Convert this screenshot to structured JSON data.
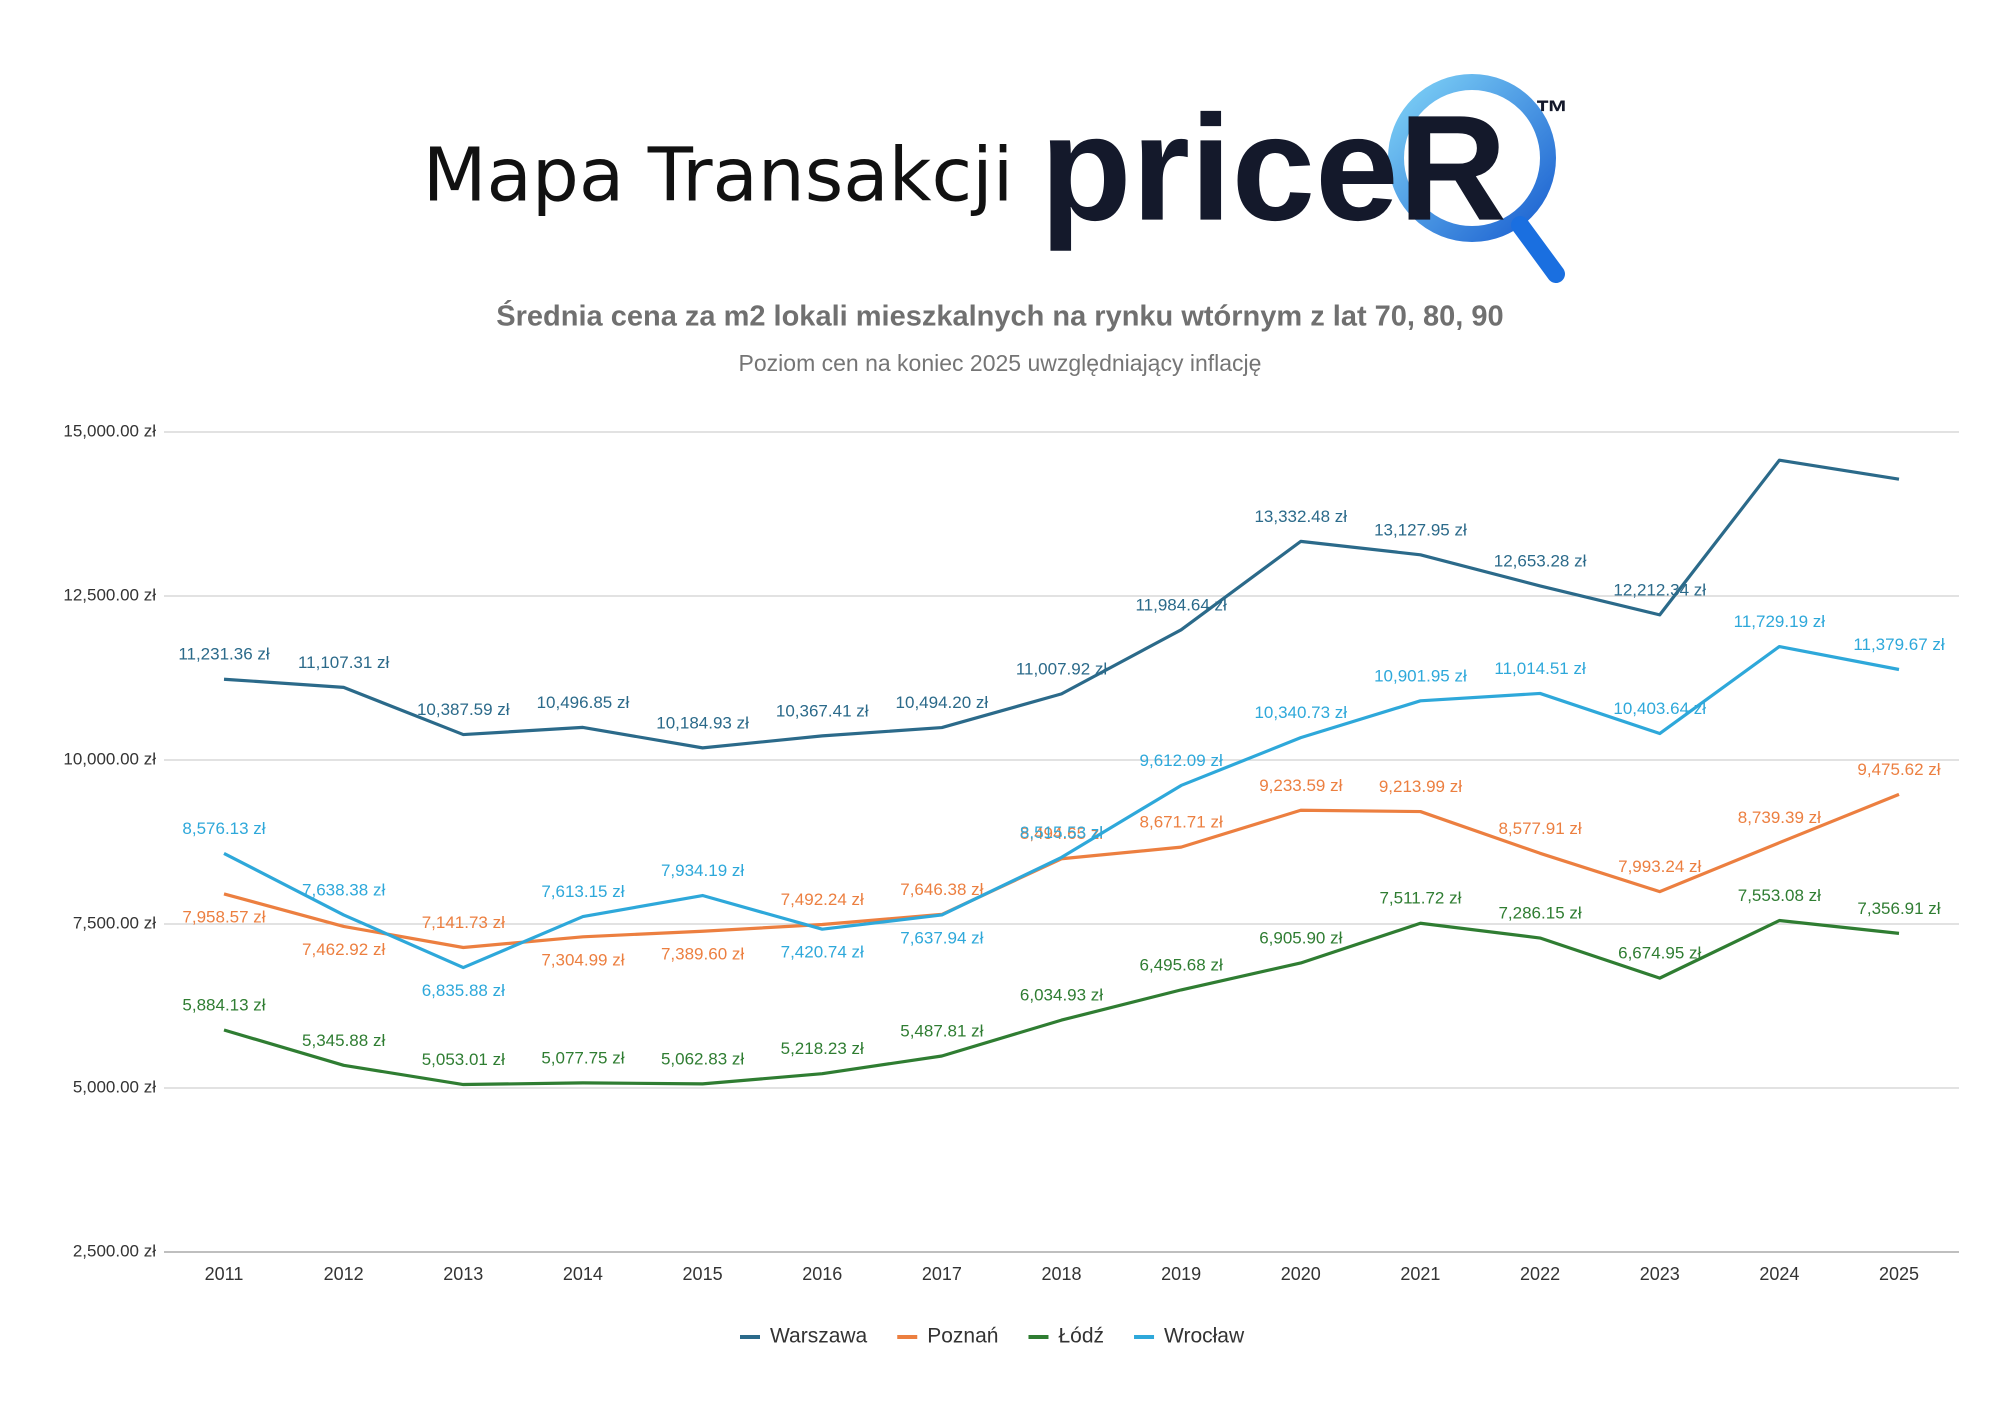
{
  "header": {
    "title": "Mapa Transakcji",
    "logo": "priceR",
    "trademark": "™"
  },
  "chart_data": {
    "type": "line",
    "title": "Średnia cena za m2 lokali mieszkalnych na rynku wtórnym z lat 70, 80, 90",
    "subtitle": "Poziom cen na koniec 2025 uwzględniający inflację",
    "categories": [
      "2011",
      "2012",
      "2013",
      "2014",
      "2015",
      "2016",
      "2017",
      "2018",
      "2019",
      "2020",
      "2021",
      "2022",
      "2023",
      "2024",
      "2025"
    ],
    "series": [
      {
        "name": "Warszawa",
        "color": "#2b6a8a",
        "values": [
          11231.36,
          11107.31,
          10387.59,
          10496.85,
          10184.93,
          10367.41,
          10494.2,
          11007.92,
          11984.64,
          13332.48,
          13127.95,
          12653.28,
          12212.34,
          14570,
          14280
        ],
        "value_labels": [
          "11,231.36 zł",
          "11,107.31 zł",
          "10,387.59 zł",
          "10,496.85 zł",
          "10,184.93 zł",
          "10,367.41 zł",
          "10,494.20 zł",
          "11,007.92 zł",
          "11,984.64 zł",
          "13,332.48 zł",
          "13,127.95 zł",
          "12,653.28 zł",
          "12,212.34 zł",
          null,
          null
        ]
      },
      {
        "name": "Poznań",
        "color": "#ec7f40",
        "values": [
          7958.57,
          7462.92,
          7141.73,
          7304.99,
          7389.6,
          7492.24,
          7646.38,
          8494.65,
          8671.71,
          9233.59,
          9213.99,
          8577.91,
          7993.24,
          8739.39,
          9475.62
        ],
        "value_labels": [
          "7,958.57 zł",
          "7,462.92 zł",
          "7,141.73 zł",
          "7,304.99 zł",
          "7,389.60 zł",
          "7,492.24 zł",
          "7,646.38 zł",
          "8,494.65 zł",
          "8,671.71 zł",
          "9,233.59 zł",
          "9,213.99 zł",
          "8,577.91 zł",
          "7,993.24 zł",
          "8,739.39 zł",
          "9,475.62 zł"
        ]
      },
      {
        "name": "Łódź",
        "color": "#2f7d32",
        "values": [
          5884.13,
          5345.88,
          5053.01,
          5077.75,
          5062.83,
          5218.23,
          5487.81,
          6034.93,
          6495.68,
          6905.9,
          7511.72,
          7286.15,
          6674.95,
          7553.08,
          7356.91
        ],
        "value_labels": [
          "5,884.13 zł",
          "5,345.88 zł",
          "5,053.01 zł",
          "5,077.75 zł",
          "5,062.83 zł",
          "5,218.23 zł",
          "5,487.81 zł",
          "6,034.93 zł",
          "6,495.68 zł",
          "6,905.90 zł",
          "7,511.72 zł",
          "7,286.15 zł",
          "6,674.95 zł",
          "7,553.08 zł",
          "7,356.91 zł"
        ]
      },
      {
        "name": "Wrocław",
        "color": "#2ea8da",
        "values": [
          8576.13,
          7638.38,
          6835.88,
          7613.15,
          7934.19,
          7420.74,
          7637.94,
          8515.53,
          9612.09,
          10340.73,
          10901.95,
          11014.51,
          10403.64,
          11729.19,
          11379.67
        ],
        "value_labels": [
          "8,576.13 zł",
          "7,638.38 zł",
          "6,835.88 zł",
          "7,613.15 zł",
          "7,934.19 zł",
          "7,420.74 zł",
          "7,637.94 zł",
          "8,515.53 zł",
          "9,612.09 zł",
          "10,340.73 zł",
          "10,901.95 zł",
          "11,014.51 zł",
          "10,403.64 zł",
          "11,729.19 zł",
          "11,379.67 zł"
        ]
      }
    ],
    "ylim": [
      2500,
      15000
    ],
    "yticks": [
      {
        "value": 2500,
        "label": "2,500.00 zł"
      },
      {
        "value": 5000,
        "label": "5,000.00 zł"
      },
      {
        "value": 7500,
        "label": "7,500.00 zł"
      },
      {
        "value": 10000,
        "label": "10,000.00 zł"
      },
      {
        "value": 12500,
        "label": "12,500.00 zł"
      },
      {
        "value": 15000,
        "label": "15,000.00 zł"
      }
    ],
    "grid": true,
    "legend": "bottom"
  }
}
